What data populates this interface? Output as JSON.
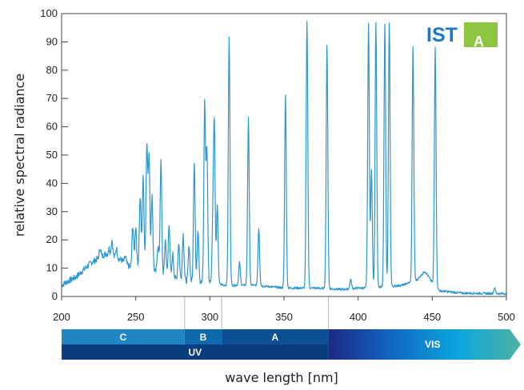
{
  "chart_data": {
    "type": "line",
    "xlabel": "wave length [nm]",
    "ylabel": "relative spectral radiance",
    "xlim": [
      200,
      500
    ],
    "ylim": [
      0,
      100
    ],
    "x_ticks": [
      "200",
      "250",
      "300",
      "350",
      "400",
      "450",
      "500"
    ],
    "y_ticks": [
      "0",
      "10",
      "20",
      "30",
      "40",
      "50",
      "60",
      "70",
      "80",
      "90",
      "100"
    ],
    "line_color": "#2b96cf",
    "grid": false,
    "baseline": [
      [
        200,
        4
      ],
      [
        203,
        5
      ],
      [
        210,
        7
      ],
      [
        220,
        12
      ],
      [
        230,
        15
      ],
      [
        240,
        13
      ],
      [
        247,
        10
      ],
      [
        255,
        12
      ],
      [
        262,
        9
      ],
      [
        270,
        7
      ],
      [
        280,
        6
      ],
      [
        290,
        5
      ],
      [
        300,
        5
      ],
      [
        310,
        4
      ],
      [
        330,
        4
      ],
      [
        350,
        3
      ],
      [
        370,
        3
      ],
      [
        390,
        2.5
      ],
      [
        400,
        3
      ],
      [
        410,
        3
      ],
      [
        430,
        4
      ],
      [
        440,
        6
      ],
      [
        445,
        9
      ],
      [
        450,
        5
      ],
      [
        455,
        2
      ],
      [
        470,
        1.2
      ],
      [
        500,
        1
      ]
    ],
    "peaks": [
      {
        "x": 226,
        "y": 17
      },
      {
        "x": 229,
        "y": 15
      },
      {
        "x": 232,
        "y": 17
      },
      {
        "x": 234,
        "y": 20
      },
      {
        "x": 237,
        "y": 17
      },
      {
        "x": 243,
        "y": 14
      },
      {
        "x": 248,
        "y": 25
      },
      {
        "x": 250,
        "y": 25
      },
      {
        "x": 253,
        "y": 35
      },
      {
        "x": 255,
        "y": 42
      },
      {
        "x": 257.5,
        "y": 54
      },
      {
        "x": 259,
        "y": 50
      },
      {
        "x": 261,
        "y": 36
      },
      {
        "x": 265,
        "y": 18
      },
      {
        "x": 267,
        "y": 47.5
      },
      {
        "x": 270,
        "y": 20
      },
      {
        "x": 272.5,
        "y": 26
      },
      {
        "x": 275,
        "y": 15
      },
      {
        "x": 279,
        "y": 19
      },
      {
        "x": 282,
        "y": 22
      },
      {
        "x": 286,
        "y": 18
      },
      {
        "x": 289.5,
        "y": 48
      },
      {
        "x": 292,
        "y": 24
      },
      {
        "x": 296.5,
        "y": 68
      },
      {
        "x": 298,
        "y": 52
      },
      {
        "x": 302,
        "y": 24
      },
      {
        "x": 303,
        "y": 59.5
      },
      {
        "x": 305,
        "y": 32
      },
      {
        "x": 313,
        "y": 91.5
      },
      {
        "x": 320,
        "y": 12
      },
      {
        "x": 326,
        "y": 63
      },
      {
        "x": 333,
        "y": 24
      },
      {
        "x": 351,
        "y": 71
      },
      {
        "x": 365.5,
        "y": 97.5
      },
      {
        "x": 379,
        "y": 88.5
      },
      {
        "x": 395,
        "y": 6
      },
      {
        "x": 407,
        "y": 96.5
      },
      {
        "x": 409,
        "y": 45
      },
      {
        "x": 412,
        "y": 96.5
      },
      {
        "x": 418,
        "y": 96.5
      },
      {
        "x": 421,
        "y": 97
      },
      {
        "x": 437,
        "y": 88
      },
      {
        "x": 452,
        "y": 88.5
      },
      {
        "x": 492,
        "y": 3
      }
    ]
  },
  "spectrum_bar": {
    "bands": [
      {
        "label": "C",
        "from": 200,
        "to": 283,
        "color": "#1f86c3"
      },
      {
        "label": "B",
        "from": 283,
        "to": 308,
        "color": "#0e6aad"
      },
      {
        "label": "A",
        "from": 308,
        "to": 380,
        "color": "#0d4f95"
      }
    ],
    "uv_label": "UV",
    "uv_color": "#0a3d7d",
    "vis_label": "VIS",
    "vis_from": 380,
    "vis_colors": [
      "#1a2a85",
      "#1167c0",
      "#0aa6dd",
      "#4fb2a3"
    ]
  },
  "logo": {
    "text": "IST",
    "badge_text": "A",
    "text_color": "#1e78c8",
    "badge_color": "#8cc63f"
  }
}
